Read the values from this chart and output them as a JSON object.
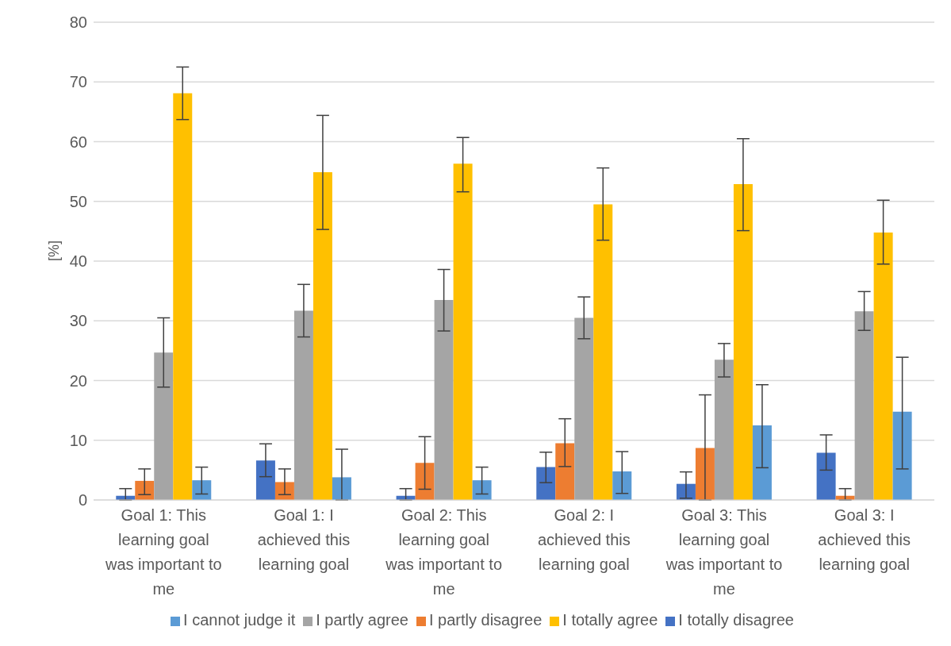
{
  "chart_data": {
    "type": "bar",
    "ylabel": "[%]",
    "categories": [
      "Goal 1: This learning goal was important to me",
      "Goal 1: I achieved this learning goal",
      "Goal 2: This learning goal was important to me",
      "Goal 2: I achieved this learning goal",
      "Goal 3: This learning goal was important to me",
      "Goal 3: I achieved this learning goal"
    ],
    "series": [
      {
        "name": "I totally disagree",
        "color": "#4472c4",
        "values": [
          0.7,
          6.6,
          0.7,
          5.5,
          2.7,
          7.9
        ],
        "errors": [
          [
            0,
            1.9
          ],
          [
            3.9,
            9.4
          ],
          [
            0,
            1.9
          ],
          [
            2.9,
            8.0
          ],
          [
            0.3,
            4.7
          ],
          [
            5.0,
            10.9
          ]
        ]
      },
      {
        "name": "I partly disagree",
        "color": "#ed7d31",
        "values": [
          3.2,
          3.0,
          6.2,
          9.5,
          8.7,
          0.7
        ],
        "errors": [
          [
            0.9,
            5.2
          ],
          [
            0.9,
            5.2
          ],
          [
            1.8,
            10.6
          ],
          [
            5.6,
            13.6
          ],
          [
            0,
            17.6
          ],
          [
            0,
            1.9
          ]
        ]
      },
      {
        "name": "I partly agree",
        "color": "#a5a5a5",
        "values": [
          24.7,
          31.7,
          33.5,
          30.5,
          23.5,
          31.6
        ],
        "errors": [
          [
            18.9,
            30.5
          ],
          [
            27.3,
            36.1
          ],
          [
            28.3,
            38.6
          ],
          [
            27.0,
            34.0
          ],
          [
            20.6,
            26.2
          ],
          [
            28.4,
            34.9
          ]
        ]
      },
      {
        "name": "I totally agree",
        "color": "#ffc000",
        "values": [
          68.1,
          54.9,
          56.3,
          49.5,
          52.9,
          44.8
        ],
        "errors": [
          [
            63.7,
            72.5
          ],
          [
            45.3,
            64.4
          ],
          [
            51.6,
            60.7
          ],
          [
            43.5,
            55.6
          ],
          [
            45.1,
            60.5
          ],
          [
            39.5,
            50.2
          ]
        ]
      },
      {
        "name": "I cannot judge it",
        "color": "#5b9bd5",
        "values": [
          3.3,
          3.8,
          3.3,
          4.8,
          12.5,
          14.8
        ],
        "errors": [
          [
            1.0,
            5.5
          ],
          [
            0,
            8.5
          ],
          [
            1.0,
            5.5
          ],
          [
            1.1,
            8.1
          ],
          [
            5.4,
            19.3
          ],
          [
            5.2,
            23.9
          ]
        ]
      }
    ],
    "ylim": [
      0,
      80
    ],
    "yticks": [
      0,
      10,
      20,
      30,
      40,
      50,
      60,
      70,
      80
    ],
    "grid": "y",
    "legend": "bottom"
  }
}
